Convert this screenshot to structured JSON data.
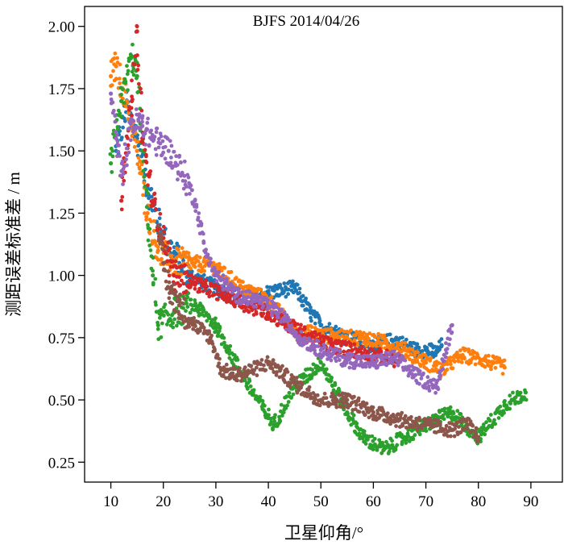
{
  "chart_data": {
    "type": "scatter",
    "title": "BJFS   2014/04/26",
    "xlabel": "卫星仰角/°",
    "ylabel": "测距误差标准差 / m",
    "xlim": [
      5,
      96
    ],
    "ylim": [
      0.17,
      2.08
    ],
    "xticks": [
      "10",
      "20",
      "30",
      "40",
      "50",
      "60",
      "70",
      "80",
      "90"
    ],
    "yticks": [
      "0.25",
      "0.50",
      "0.75",
      "1.00",
      "1.25",
      "1.50",
      "1.75",
      "2.00"
    ],
    "grid": false,
    "legend": "none",
    "series": [
      {
        "color": "#1f77b4",
        "x": [
          11,
          13,
          15,
          17,
          20,
          25,
          30,
          35,
          40,
          45,
          48,
          50,
          55,
          60,
          64,
          68,
          70,
          72,
          73
        ],
        "y": [
          1.5,
          1.68,
          1.55,
          1.35,
          1.15,
          1.0,
          0.95,
          0.9,
          0.93,
          0.95,
          0.85,
          0.8,
          0.75,
          0.72,
          0.74,
          0.7,
          0.7,
          0.69,
          0.72
        ]
      },
      {
        "color": "#ff7f0e",
        "x": [
          10,
          11,
          13,
          15,
          17,
          19,
          22,
          26,
          30,
          35,
          40,
          45,
          50,
          55,
          58,
          62,
          66,
          70,
          73,
          77,
          81,
          85
        ],
        "y": [
          1.8,
          1.84,
          1.7,
          1.5,
          1.25,
          1.1,
          1.05,
          1.05,
          1.03,
          0.95,
          0.9,
          0.78,
          0.76,
          0.75,
          0.75,
          0.73,
          0.7,
          0.65,
          0.62,
          0.68,
          0.66,
          0.63
        ]
      },
      {
        "color": "#2ca02c",
        "x": [
          10,
          12,
          14,
          15,
          16,
          18,
          19,
          22,
          26,
          30,
          35,
          38,
          41,
          45,
          50,
          55,
          58,
          62,
          66,
          70,
          75,
          80,
          85,
          89
        ],
        "y": [
          1.45,
          1.7,
          1.88,
          1.8,
          1.5,
          1.0,
          0.8,
          0.85,
          0.88,
          0.8,
          0.6,
          0.5,
          0.4,
          0.55,
          0.65,
          0.45,
          0.35,
          0.3,
          0.35,
          0.4,
          0.45,
          0.35,
          0.48,
          0.53
        ]
      },
      {
        "color": "#d62728",
        "x": [
          12,
          14,
          15,
          16,
          18,
          20,
          22,
          25,
          28,
          32,
          36,
          40,
          44,
          48,
          52,
          56,
          60,
          65
        ],
        "y": [
          1.3,
          1.7,
          1.98,
          1.55,
          1.3,
          1.15,
          1.0,
          0.98,
          0.95,
          0.92,
          0.88,
          0.85,
          0.8,
          0.75,
          0.72,
          0.7,
          0.68,
          0.66
        ]
      },
      {
        "color": "#9467bd",
        "x": [
          10,
          11,
          12,
          14,
          16,
          18,
          21,
          24,
          26,
          28,
          30,
          34,
          38,
          42,
          46,
          50,
          55,
          60,
          64,
          68,
          72,
          75
        ],
        "y": [
          1.73,
          1.55,
          1.4,
          1.62,
          1.6,
          1.55,
          1.5,
          1.4,
          1.3,
          1.1,
          1.0,
          0.92,
          0.9,
          0.85,
          0.75,
          0.7,
          0.66,
          0.65,
          0.67,
          0.6,
          0.55,
          0.8
        ]
      },
      {
        "color": "#8c564b",
        "x": [
          19,
          20,
          21,
          23,
          26,
          29,
          31,
          34,
          37,
          40,
          43,
          46,
          50,
          55,
          60,
          65,
          70,
          75,
          78,
          80
        ],
        "y": [
          1.2,
          1.05,
          0.95,
          0.88,
          0.8,
          0.75,
          0.62,
          0.6,
          0.62,
          0.65,
          0.6,
          0.55,
          0.5,
          0.5,
          0.45,
          0.42,
          0.4,
          0.38,
          0.4,
          0.35
        ]
      }
    ]
  }
}
